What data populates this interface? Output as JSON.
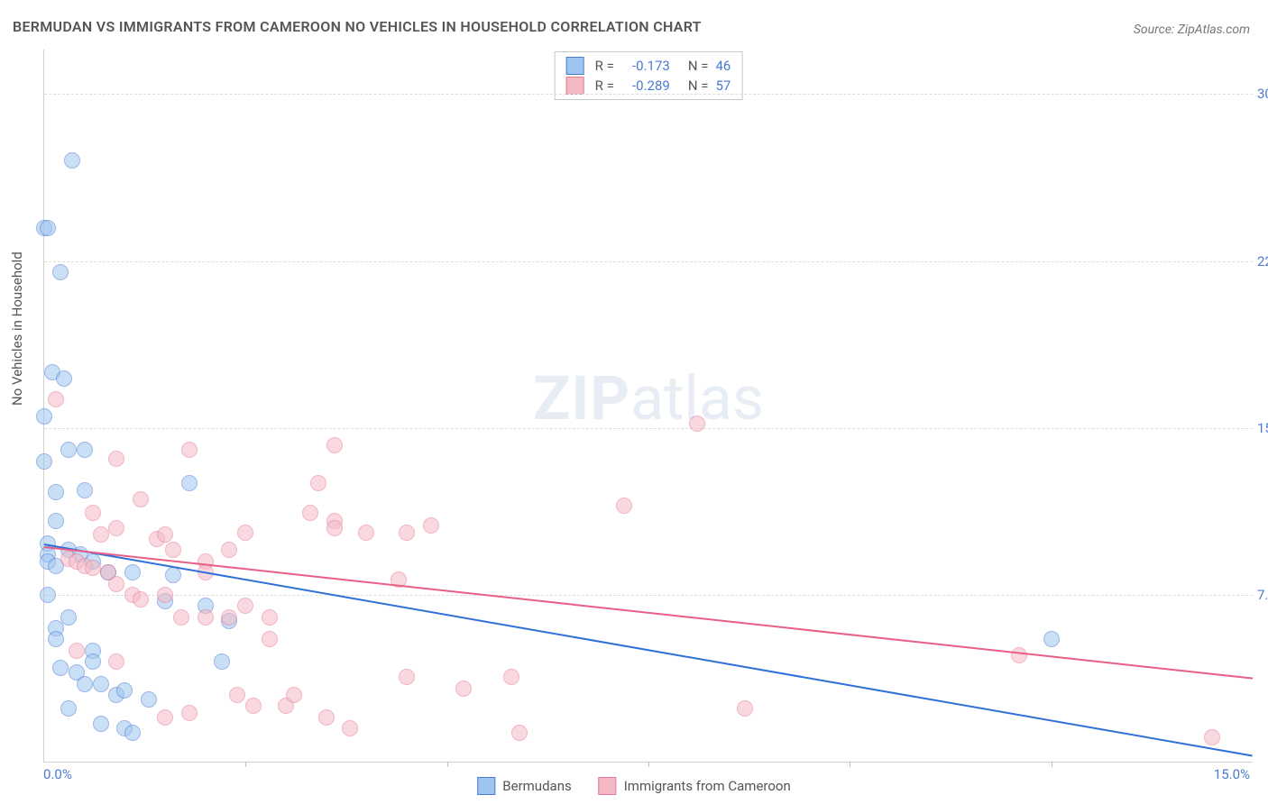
{
  "title": "BERMUDAN VS IMMIGRANTS FROM CAMEROON NO VEHICLES IN HOUSEHOLD CORRELATION CHART",
  "source": "Source: ZipAtlas.com",
  "ylabel": "No Vehicles in Household",
  "watermark_bold": "ZIP",
  "watermark_rest": "atlas",
  "chart": {
    "type": "scatter",
    "xlim": [
      0,
      15
    ],
    "ylim": [
      0,
      32
    ],
    "xtick_left": "0.0%",
    "xtick_right": "15.0%",
    "xminor_step": 2.5,
    "ytick_step": 7.5,
    "yticks": [
      7.5,
      15.0,
      22.5,
      30.0
    ],
    "ytick_labels": [
      "7.5%",
      "15.0%",
      "22.5%",
      "30.0%"
    ],
    "grid_color": "#dddddd",
    "background_color": "#ffffff",
    "axis_color": "#d0d0d0",
    "tick_fontsize": 15,
    "label_fontsize": 15,
    "marker_radius": 8,
    "marker_opacity": 0.55,
    "trend_width": 2
  },
  "series": [
    {
      "name": "Bermudans",
      "fill_color": "#9ec5f0",
      "stroke_color": "#4a7bd0",
      "trend_color": "#2f6fd8",
      "R": "-0.173",
      "N": "46",
      "trend_start": [
        0,
        9.8
      ],
      "trend_end": [
        15,
        0.3
      ],
      "points": [
        [
          0.0,
          24.0
        ],
        [
          0.05,
          24.0
        ],
        [
          0.35,
          27.0
        ],
        [
          0.2,
          22.0
        ],
        [
          0.1,
          17.5
        ],
        [
          0.25,
          17.2
        ],
        [
          0.0,
          15.5
        ],
        [
          0.0,
          13.5
        ],
        [
          0.3,
          14.0
        ],
        [
          0.5,
          14.0
        ],
        [
          0.15,
          12.1
        ],
        [
          0.5,
          12.2
        ],
        [
          0.15,
          10.8
        ],
        [
          0.05,
          9.8
        ],
        [
          0.05,
          9.3
        ],
        [
          0.05,
          9.0
        ],
        [
          0.3,
          9.5
        ],
        [
          0.45,
          9.3
        ],
        [
          0.6,
          9.0
        ],
        [
          0.15,
          8.8
        ],
        [
          0.8,
          8.5
        ],
        [
          1.1,
          8.5
        ],
        [
          0.05,
          7.5
        ],
        [
          0.3,
          6.5
        ],
        [
          0.15,
          6.0
        ],
        [
          0.15,
          5.5
        ],
        [
          0.6,
          5.0
        ],
        [
          0.6,
          4.5
        ],
        [
          0.2,
          4.2
        ],
        [
          0.4,
          4.0
        ],
        [
          0.5,
          3.5
        ],
        [
          0.7,
          3.5
        ],
        [
          0.9,
          3.0
        ],
        [
          1.0,
          3.2
        ],
        [
          1.5,
          7.2
        ],
        [
          1.6,
          8.4
        ],
        [
          1.8,
          12.5
        ],
        [
          2.0,
          7.0
        ],
        [
          2.2,
          4.5
        ],
        [
          2.3,
          6.3
        ],
        [
          0.3,
          2.4
        ],
        [
          0.7,
          1.7
        ],
        [
          1.0,
          1.5
        ],
        [
          1.1,
          1.3
        ],
        [
          1.3,
          2.8
        ],
        [
          12.5,
          5.5
        ]
      ]
    },
    {
      "name": "Immigrants from Cameroon",
      "fill_color": "#f5b9c6",
      "stroke_color": "#e77a94",
      "trend_color": "#e95f85",
      "R": "-0.289",
      "N": "57",
      "trend_start": [
        0,
        9.7
      ],
      "trend_end": [
        15,
        3.8
      ],
      "points": [
        [
          0.15,
          16.3
        ],
        [
          0.9,
          13.6
        ],
        [
          1.8,
          14.0
        ],
        [
          3.6,
          14.2
        ],
        [
          8.1,
          15.2
        ],
        [
          0.6,
          11.2
        ],
        [
          0.7,
          10.2
        ],
        [
          0.9,
          10.5
        ],
        [
          1.2,
          11.8
        ],
        [
          1.4,
          10.0
        ],
        [
          1.5,
          10.2
        ],
        [
          1.6,
          9.5
        ],
        [
          2.0,
          9.0
        ],
        [
          2.3,
          9.5
        ],
        [
          2.0,
          8.5
        ],
        [
          2.5,
          10.3
        ],
        [
          3.3,
          11.2
        ],
        [
          3.4,
          12.5
        ],
        [
          3.6,
          10.8
        ],
        [
          3.6,
          10.5
        ],
        [
          4.0,
          10.3
        ],
        [
          4.5,
          10.3
        ],
        [
          4.8,
          10.6
        ],
        [
          4.4,
          8.2
        ],
        [
          7.2,
          11.5
        ],
        [
          0.3,
          9.1
        ],
        [
          0.4,
          9.0
        ],
        [
          0.5,
          8.8
        ],
        [
          0.6,
          8.7
        ],
        [
          0.8,
          8.5
        ],
        [
          0.9,
          8.0
        ],
        [
          1.1,
          7.5
        ],
        [
          1.2,
          7.3
        ],
        [
          1.5,
          7.5
        ],
        [
          1.7,
          6.5
        ],
        [
          2.0,
          6.5
        ],
        [
          2.3,
          6.5
        ],
        [
          2.5,
          7.0
        ],
        [
          2.8,
          6.5
        ],
        [
          2.4,
          3.0
        ],
        [
          2.6,
          2.5
        ],
        [
          3.0,
          2.5
        ],
        [
          2.8,
          5.5
        ],
        [
          3.1,
          3.0
        ],
        [
          3.5,
          2.0
        ],
        [
          3.8,
          1.5
        ],
        [
          4.5,
          3.8
        ],
        [
          5.2,
          3.3
        ],
        [
          5.8,
          3.8
        ],
        [
          5.9,
          1.3
        ],
        [
          8.7,
          2.4
        ],
        [
          12.1,
          4.8
        ],
        [
          14.5,
          1.1
        ],
        [
          0.4,
          5.0
        ],
        [
          0.9,
          4.5
        ],
        [
          1.5,
          2.0
        ],
        [
          1.8,
          2.2
        ]
      ]
    }
  ],
  "bottom_legend": [
    {
      "label": "Bermudans",
      "fill": "#9ec5f0",
      "stroke": "#4a7bd0"
    },
    {
      "label": "Immigrants from Cameroon",
      "fill": "#f5b9c6",
      "stroke": "#e77a94"
    }
  ]
}
